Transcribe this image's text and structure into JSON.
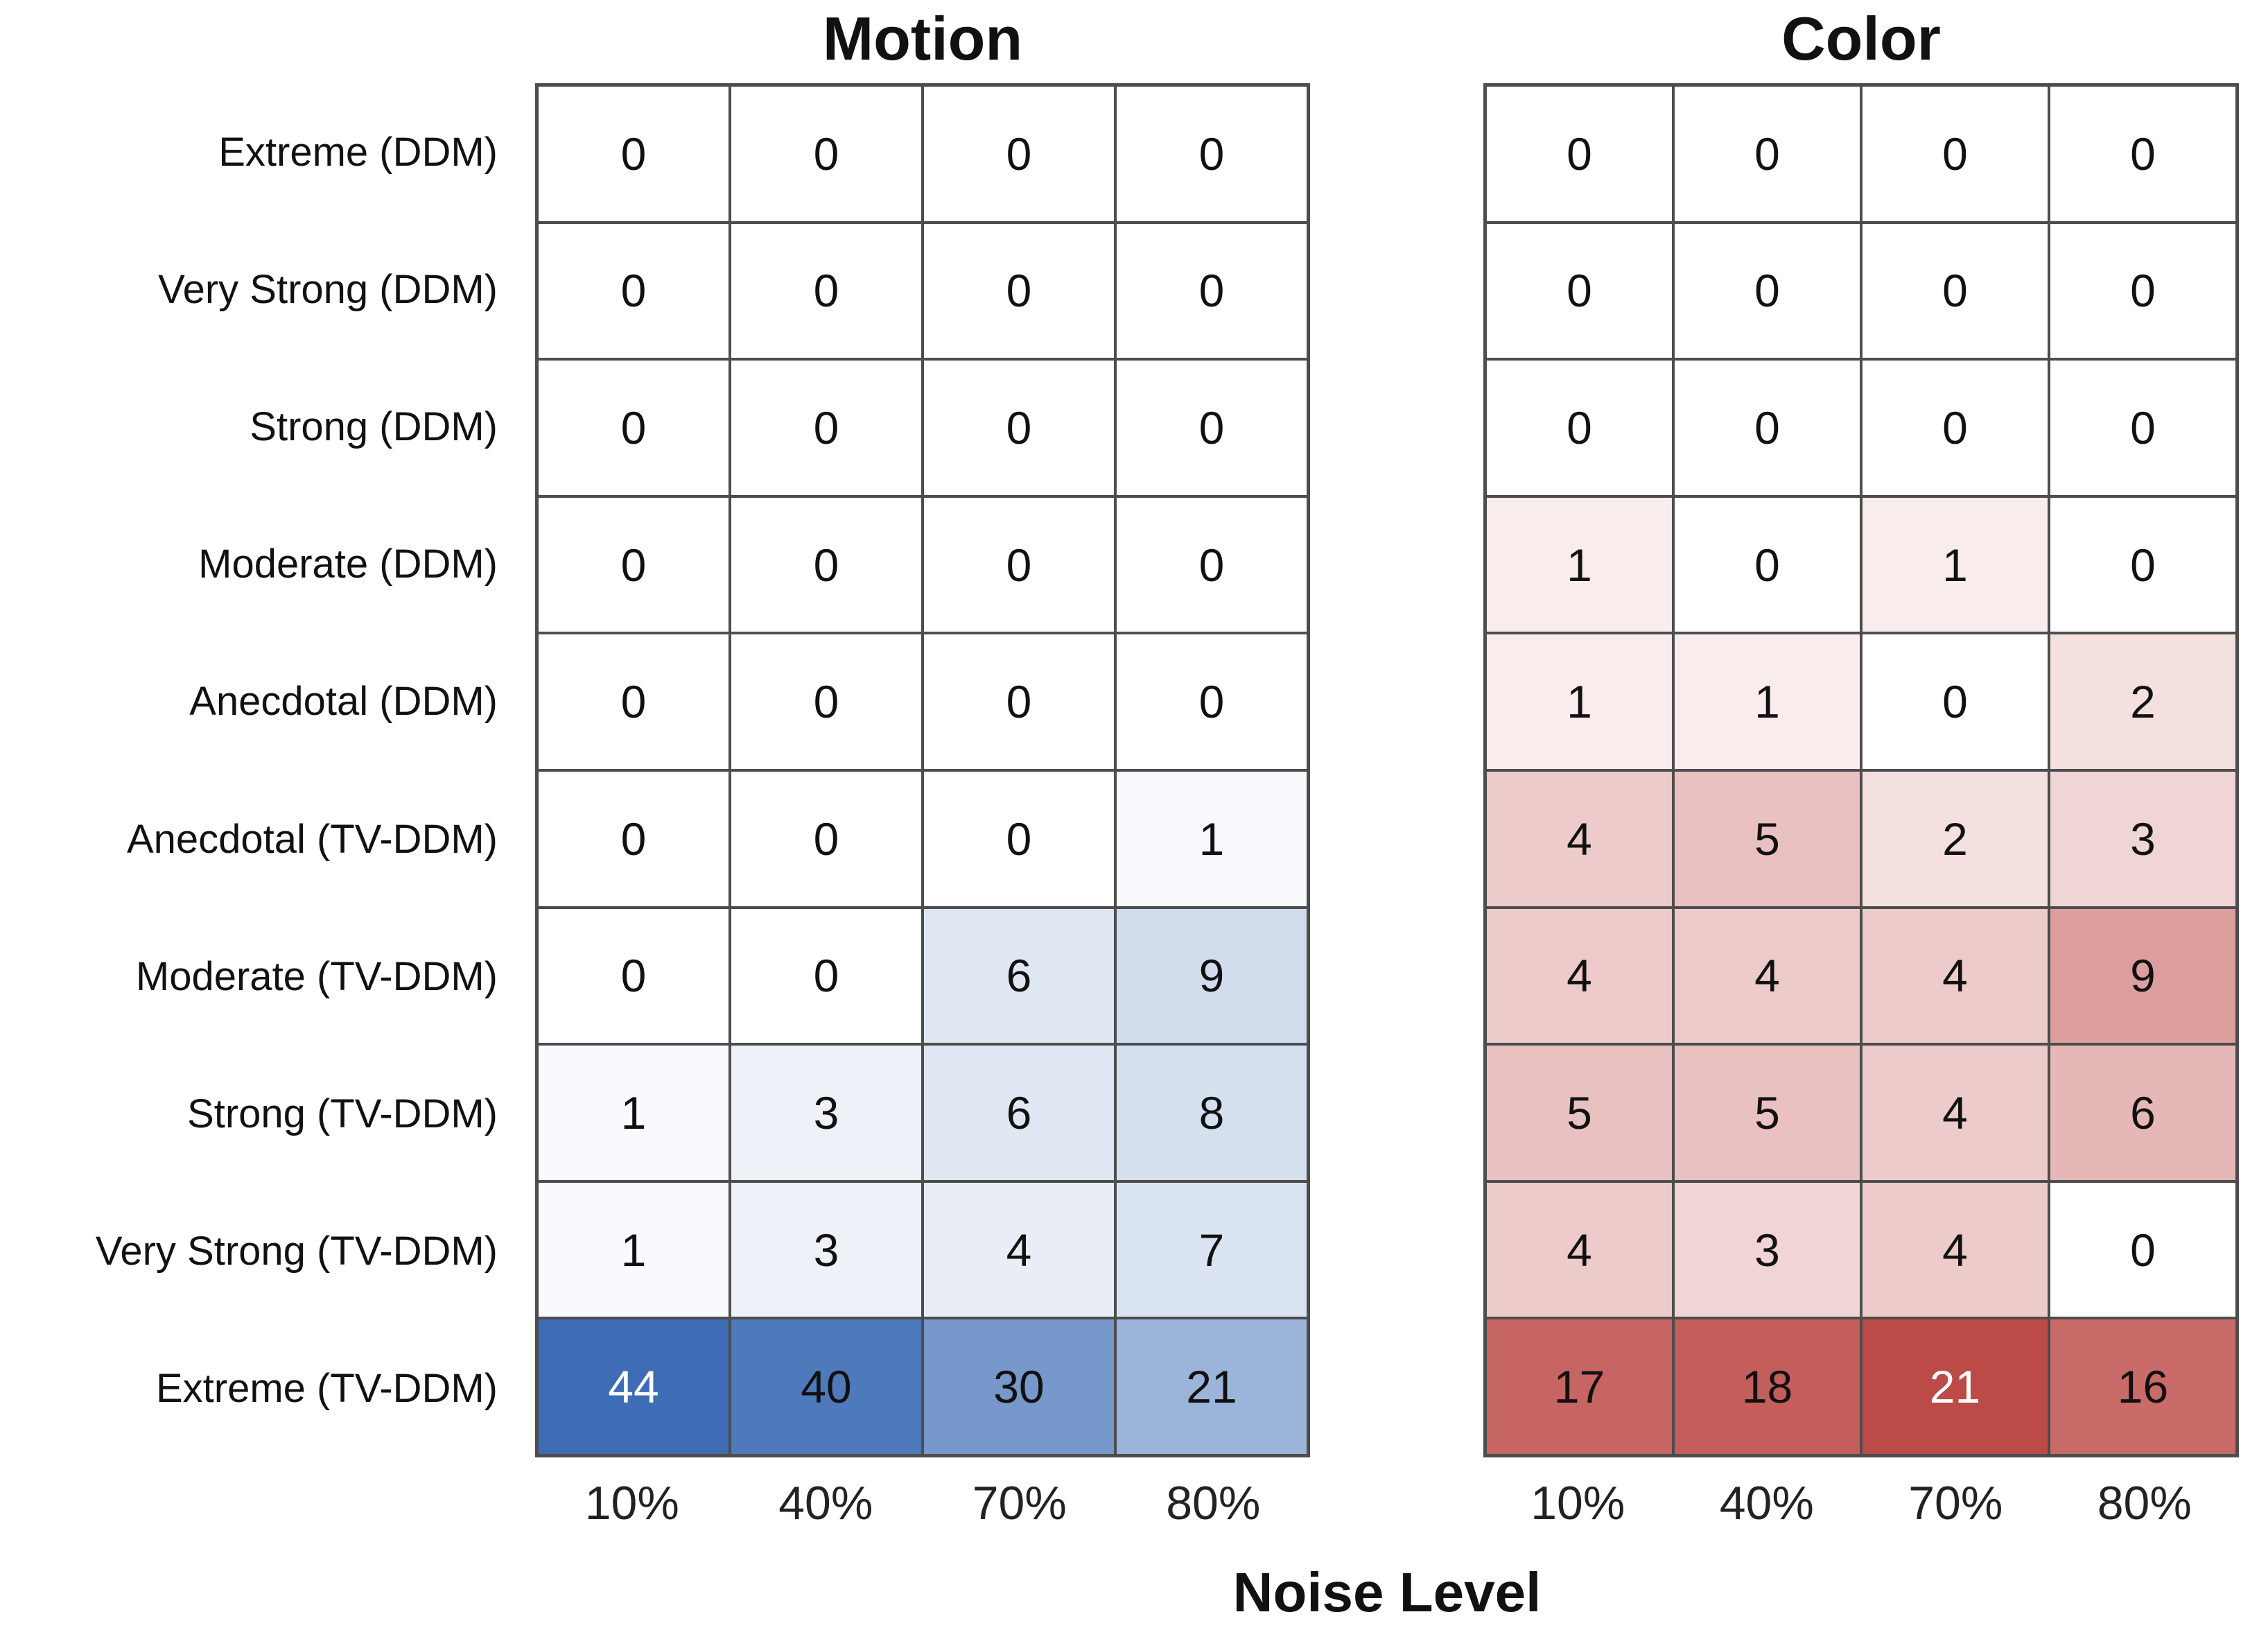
{
  "chart_data": {
    "type": "heatmap",
    "xlabel": "Noise Level",
    "categories_x": [
      "10%",
      "40%",
      "70%",
      "80%"
    ],
    "row_labels": [
      "Extreme (DDM)",
      "Very Strong (DDM)",
      "Strong (DDM)",
      "Moderate (DDM)",
      "Anecdotal (DDM)",
      "Anecdotal (TV-DDM)",
      "Moderate (TV-DDM)",
      "Strong (TV-DDM)",
      "Very Strong (TV-DDM)",
      "Extreme (TV-DDM)"
    ],
    "panels": [
      {
        "title": "Motion",
        "max_color": "#3e6db5",
        "min_color": "#ffffff",
        "gamma": 0.9,
        "vmax": 44,
        "values": [
          [
            0,
            0,
            0,
            0
          ],
          [
            0,
            0,
            0,
            0
          ],
          [
            0,
            0,
            0,
            0
          ],
          [
            0,
            0,
            0,
            0
          ],
          [
            0,
            0,
            0,
            0
          ],
          [
            0,
            0,
            0,
            1
          ],
          [
            0,
            0,
            6,
            9
          ],
          [
            1,
            3,
            6,
            8
          ],
          [
            1,
            3,
            4,
            7
          ],
          [
            44,
            40,
            30,
            21
          ]
        ]
      },
      {
        "title": "Color",
        "max_color": "#bc4a47",
        "min_color": "#ffffff",
        "gamma": 0.75,
        "vmax": 21,
        "values": [
          [
            0,
            0,
            0,
            0
          ],
          [
            0,
            0,
            0,
            0
          ],
          [
            0,
            0,
            0,
            0
          ],
          [
            1,
            0,
            1,
            0
          ],
          [
            1,
            1,
            0,
            2
          ],
          [
            4,
            5,
            2,
            3
          ],
          [
            4,
            4,
            4,
            9
          ],
          [
            5,
            5,
            4,
            6
          ],
          [
            4,
            3,
            4,
            0
          ],
          [
            17,
            18,
            21,
            16
          ]
        ]
      }
    ],
    "text_colors": {
      "dark": "#111111",
      "light": "#ffffff",
      "light_threshold": 0.97
    },
    "grid_line_color": "#4d4d4d",
    "legend": "none",
    "grid": "cell-borders"
  }
}
